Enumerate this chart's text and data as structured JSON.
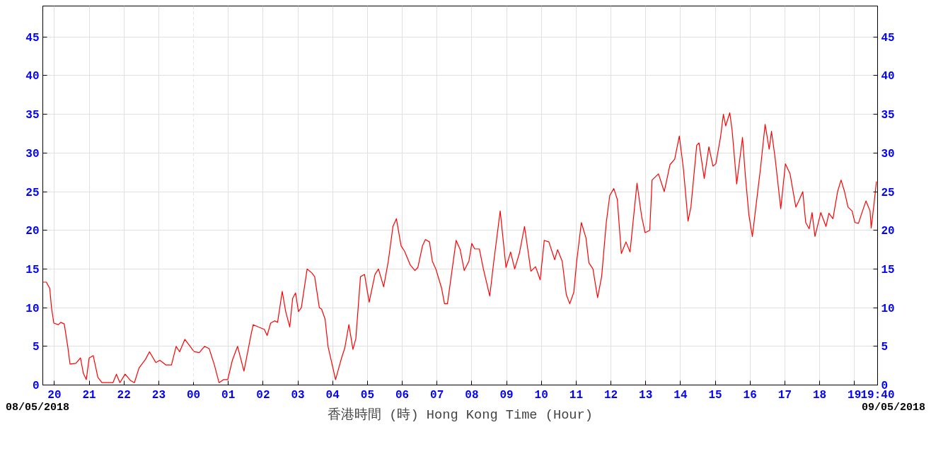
{
  "chart_data": {
    "type": "line",
    "xlabel": "香港時間 (時) Hong Kong Time (Hour)",
    "annotations": [
      "08/05/2018",
      "09/05/2018"
    ],
    "xlim": [
      "2018-05-08T19:40",
      "2018-05-09T19:40"
    ],
    "xticks": [
      {
        "value": "2018-05-08T20:00",
        "label": "20"
      },
      {
        "value": "2018-05-08T21:00",
        "label": "21"
      },
      {
        "value": "2018-05-08T22:00",
        "label": "22"
      },
      {
        "value": "2018-05-08T23:00",
        "label": "23"
      },
      {
        "value": "2018-05-09T00:00",
        "label": "00"
      },
      {
        "value": "2018-05-09T01:00",
        "label": "01"
      },
      {
        "value": "2018-05-09T02:00",
        "label": "02"
      },
      {
        "value": "2018-05-09T03:00",
        "label": "03"
      },
      {
        "value": "2018-05-09T04:00",
        "label": "04"
      },
      {
        "value": "2018-05-09T05:00",
        "label": "05"
      },
      {
        "value": "2018-05-09T06:00",
        "label": "06"
      },
      {
        "value": "2018-05-09T07:00",
        "label": "07"
      },
      {
        "value": "2018-05-09T08:00",
        "label": "08"
      },
      {
        "value": "2018-05-09T09:00",
        "label": "09"
      },
      {
        "value": "2018-05-09T10:00",
        "label": "10"
      },
      {
        "value": "2018-05-09T11:00",
        "label": "11"
      },
      {
        "value": "2018-05-09T12:00",
        "label": "12"
      },
      {
        "value": "2018-05-09T13:00",
        "label": "13"
      },
      {
        "value": "2018-05-09T14:00",
        "label": "14"
      },
      {
        "value": "2018-05-09T15:00",
        "label": "15"
      },
      {
        "value": "2018-05-09T16:00",
        "label": "16"
      },
      {
        "value": "2018-05-09T17:00",
        "label": "17"
      },
      {
        "value": "2018-05-09T18:00",
        "label": "18"
      },
      {
        "value": "2018-05-09T19:00",
        "label": "19"
      },
      {
        "value": "2018-05-09T19:40",
        "label": "19:40"
      }
    ],
    "ylim": [
      0,
      49
    ],
    "yticks": [
      0,
      5,
      10,
      15,
      20,
      25,
      30,
      35,
      40,
      45
    ],
    "y2lim": [
      0,
      49
    ],
    "y2ticks": [
      0,
      5,
      10,
      15,
      20,
      25,
      30,
      35,
      40,
      45
    ],
    "grid": true,
    "ref_lines": [
      {
        "axis": "x",
        "value": "2018-05-09T00:00",
        "line_style": "dashed",
        "color": "#e0e0e0"
      }
    ],
    "series": [
      {
        "color": "#ff0000",
        "x": [
          "2018-05-08T19:40",
          "2018-05-08T19:46",
          "2018-05-08T19:52",
          "2018-05-08T19:55",
          "2018-05-08T19:59",
          "2018-05-08T20:07",
          "2018-05-08T20:11",
          "2018-05-08T20:17",
          "2018-05-08T20:23",
          "2018-05-08T20:27",
          "2018-05-08T20:37",
          "2018-05-08T20:45",
          "2018-05-08T20:50",
          "2018-05-08T20:55",
          "2018-05-08T21:00",
          "2018-05-08T21:07",
          "2018-05-08T21:15",
          "2018-05-08T21:22",
          "2018-05-08T21:41",
          "2018-05-08T21:47",
          "2018-05-08T21:53",
          "2018-05-08T22:02",
          "2018-05-08T22:11",
          "2018-05-08T22:18",
          "2018-05-08T22:26",
          "2018-05-08T22:37",
          "2018-05-08T22:44",
          "2018-05-08T22:55",
          "2018-05-08T23:02",
          "2018-05-08T23:12",
          "2018-05-08T23:22",
          "2018-05-08T23:30",
          "2018-05-08T23:36",
          "2018-05-08T23:45",
          "2018-05-09T00:01",
          "2018-05-09T00:10",
          "2018-05-09T00:19",
          "2018-05-09T00:27",
          "2018-05-09T00:36",
          "2018-05-09T00:44",
          "2018-05-09T00:52",
          "2018-05-09T00:59",
          "2018-05-09T01:07",
          "2018-05-09T01:16",
          "2018-05-09T01:27",
          "2018-05-09T01:40",
          "2018-05-09T01:43",
          "2018-05-09T01:52",
          "2018-05-09T02:02",
          "2018-05-09T02:07",
          "2018-05-09T02:13",
          "2018-05-09T02:20",
          "2018-05-09T02:25",
          "2018-05-09T02:33",
          "2018-05-09T02:39",
          "2018-05-09T02:46",
          "2018-05-09T02:51",
          "2018-05-09T02:56",
          "2018-05-09T03:01",
          "2018-05-09T03:06",
          "2018-05-09T03:16",
          "2018-05-09T03:24",
          "2018-05-09T03:29",
          "2018-05-09T03:37",
          "2018-05-09T03:41",
          "2018-05-09T03:47",
          "2018-05-09T03:52",
          "2018-05-09T04:05",
          "2018-05-09T04:15",
          "2018-05-09T04:21",
          "2018-05-09T04:28",
          "2018-05-09T04:35",
          "2018-05-09T04:40",
          "2018-05-09T04:48",
          "2018-05-09T04:55",
          "2018-05-09T05:03",
          "2018-05-09T05:13",
          "2018-05-09T05:19",
          "2018-05-09T05:28",
          "2018-05-09T05:36",
          "2018-05-09T05:44",
          "2018-05-09T05:50",
          "2018-05-09T05:58",
          "2018-05-09T06:04",
          "2018-05-09T06:14",
          "2018-05-09T06:22",
          "2018-05-09T06:27",
          "2018-05-09T06:35",
          "2018-05-09T06:40",
          "2018-05-09T06:47",
          "2018-05-09T06:52",
          "2018-05-09T06:58",
          "2018-05-09T07:08",
          "2018-05-09T07:13",
          "2018-05-09T07:18",
          "2018-05-09T07:33",
          "2018-05-09T07:40",
          "2018-05-09T07:47",
          "2018-05-09T07:55",
          "2018-05-09T08:00",
          "2018-05-09T08:05",
          "2018-05-09T08:13",
          "2018-05-09T08:20",
          "2018-05-09T08:31",
          "2018-05-09T08:38",
          "2018-05-09T08:49",
          "2018-05-09T08:59",
          "2018-05-09T09:07",
          "2018-05-09T09:14",
          "2018-05-09T09:22",
          "2018-05-09T09:31",
          "2018-05-09T09:42",
          "2018-05-09T09:50",
          "2018-05-09T09:58",
          "2018-05-09T10:05",
          "2018-05-09T10:13",
          "2018-05-09T10:23",
          "2018-05-09T10:28",
          "2018-05-09T10:36",
          "2018-05-09T10:43",
          "2018-05-09T10:49",
          "2018-05-09T10:56",
          "2018-05-09T11:01",
          "2018-05-09T11:09",
          "2018-05-09T11:17",
          "2018-05-09T11:22",
          "2018-05-09T11:29",
          "2018-05-09T11:37",
          "2018-05-09T11:44",
          "2018-05-09T11:52",
          "2018-05-09T11:58",
          "2018-05-09T12:05",
          "2018-05-09T12:11",
          "2018-05-09T12:18",
          "2018-05-09T12:26",
          "2018-05-09T12:33",
          "2018-05-09T12:45",
          "2018-05-09T12:53",
          "2018-05-09T12:59",
          "2018-05-09T13:07",
          "2018-05-09T13:11",
          "2018-05-09T13:22",
          "2018-05-09T13:32",
          "2018-05-09T13:42",
          "2018-05-09T13:50",
          "2018-05-09T13:58",
          "2018-05-09T14:05",
          "2018-05-09T14:13",
          "2018-05-09T14:18",
          "2018-05-09T14:28",
          "2018-05-09T14:32",
          "2018-05-09T14:41",
          "2018-05-09T14:49",
          "2018-05-09T14:56",
          "2018-05-09T15:01",
          "2018-05-09T15:09",
          "2018-05-09T15:14",
          "2018-05-09T15:18",
          "2018-05-09T15:25",
          "2018-05-09T15:29",
          "2018-05-09T15:37",
          "2018-05-09T15:47",
          "2018-05-09T15:52",
          "2018-05-09T15:58",
          "2018-05-09T16:04",
          "2018-05-09T16:10",
          "2018-05-09T16:18",
          "2018-05-09T16:26",
          "2018-05-09T16:33",
          "2018-05-09T16:37",
          "2018-05-09T16:43",
          "2018-05-09T16:53",
          "2018-05-09T17:01",
          "2018-05-09T17:09",
          "2018-05-09T17:19",
          "2018-05-09T17:24",
          "2018-05-09T17:31",
          "2018-05-09T17:36",
          "2018-05-09T17:42",
          "2018-05-09T17:47",
          "2018-05-09T17:52",
          "2018-05-09T18:02",
          "2018-05-09T18:11",
          "2018-05-09T18:16",
          "2018-05-09T18:23",
          "2018-05-09T18:31",
          "2018-05-09T18:37",
          "2018-05-09T18:43",
          "2018-05-09T18:49",
          "2018-05-09T18:56",
          "2018-05-09T19:01",
          "2018-05-09T19:07",
          "2018-05-09T19:14",
          "2018-05-09T19:20",
          "2018-05-09T19:27",
          "2018-05-09T19:29",
          "2018-05-09T19:34",
          "2018-05-09T19:38"
        ],
        "values": [
          13.3,
          13.3,
          12.5,
          10,
          8,
          7.8,
          8.1,
          7.9,
          5,
          2.7,
          2.8,
          3.5,
          1.5,
          0.7,
          3.5,
          3.8,
          1,
          0.3,
          0.3,
          1.4,
          0.3,
          1.4,
          0.6,
          0.3,
          2.2,
          3.3,
          4.3,
          2.9,
          3.2,
          2.6,
          2.6,
          5,
          4.3,
          5.9,
          4.3,
          4.2,
          5,
          4.7,
          2.6,
          0.3,
          0.7,
          0.7,
          3.2,
          5,
          1.8,
          6.8,
          7.8,
          7.5,
          7.2,
          6.4,
          8,
          8.3,
          8.1,
          12.1,
          9.5,
          7.5,
          11.2,
          11.9,
          9.5,
          10,
          15,
          14.5,
          14,
          10,
          9.8,
          8.5,
          5,
          0.7,
          3.4,
          4.8,
          7.8,
          4.6,
          6,
          14,
          14.3,
          10.7,
          14.3,
          15,
          12.7,
          16,
          20.5,
          21.5,
          18,
          17.3,
          15.5,
          14.8,
          15.2,
          18,
          18.8,
          18.5,
          16,
          15,
          12.5,
          10.5,
          10.5,
          18.7,
          17.5,
          14.8,
          16,
          18.3,
          17.6,
          17.6,
          15,
          11.5,
          16,
          22.5,
          15.2,
          17.2,
          15,
          17,
          20.5,
          14.7,
          15.3,
          13.6,
          18.7,
          18.5,
          16.2,
          17.5,
          16,
          11.7,
          10.5,
          12,
          16,
          21,
          19,
          15.8,
          15,
          11.3,
          14,
          21,
          24.5,
          25.4,
          24,
          17,
          18.5,
          17.2,
          26.1,
          21.8,
          19.7,
          20,
          26.5,
          27.3,
          25,
          28.5,
          29.2,
          32.2,
          28,
          21.2,
          23,
          31,
          31.3,
          26.7,
          30.8,
          28.3,
          28.6,
          32,
          35,
          33.5,
          35.2,
          33,
          26,
          32,
          27,
          22,
          19.2,
          23,
          28,
          33.7,
          30.5,
          32.8,
          29.5,
          22.8,
          28.6,
          27.3,
          23,
          23.8,
          25,
          21,
          20.2,
          22.3,
          19.2,
          22.3,
          20.5,
          22.2,
          21.5,
          25,
          26.5,
          25,
          23,
          22.5,
          21,
          20.9,
          22.5,
          23.8,
          22.5,
          20.3,
          23.5,
          26.3
        ]
      }
    ]
  }
}
